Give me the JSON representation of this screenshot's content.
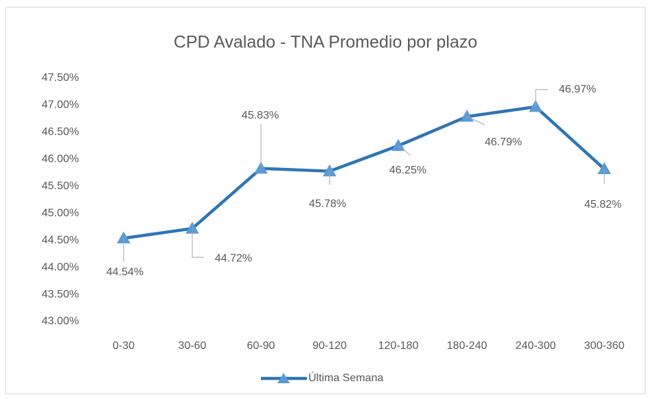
{
  "chart_data": {
    "type": "line",
    "title": "CPD Avalado - TNA Promedio por plazo",
    "categories": [
      "0-30",
      "30-60",
      "60-90",
      "90-120",
      "120-180",
      "180-240",
      "240-300",
      "300-360"
    ],
    "series": [
      {
        "name": "Última Semana",
        "color": "#2e75b6",
        "marker_color": "#5b9bd5",
        "values": [
          44.54,
          44.72,
          45.83,
          45.78,
          46.25,
          46.79,
          46.97,
          45.82
        ],
        "value_labels": [
          "44.54%",
          "44.72%",
          "45.83%",
          "45.78%",
          "46.25%",
          "46.79%",
          "46.97%",
          "45.82%"
        ]
      }
    ],
    "ylim": [
      43,
      47.5
    ],
    "yticks": [
      {
        "value": 43,
        "label": "43.00%"
      },
      {
        "value": 43.5,
        "label": "43.50%"
      },
      {
        "value": 44,
        "label": "44.00%"
      },
      {
        "value": 44.5,
        "label": "44.50%"
      },
      {
        "value": 45,
        "label": "45.00%"
      },
      {
        "value": 45.5,
        "label": "45.50%"
      },
      {
        "value": 46,
        "label": "46.00%"
      },
      {
        "value": 46.5,
        "label": "46.50%"
      },
      {
        "value": 47,
        "label": "47.00%"
      },
      {
        "value": 47.5,
        "label": "47.50%"
      }
    ],
    "grid": false,
    "legend": "bottom"
  }
}
